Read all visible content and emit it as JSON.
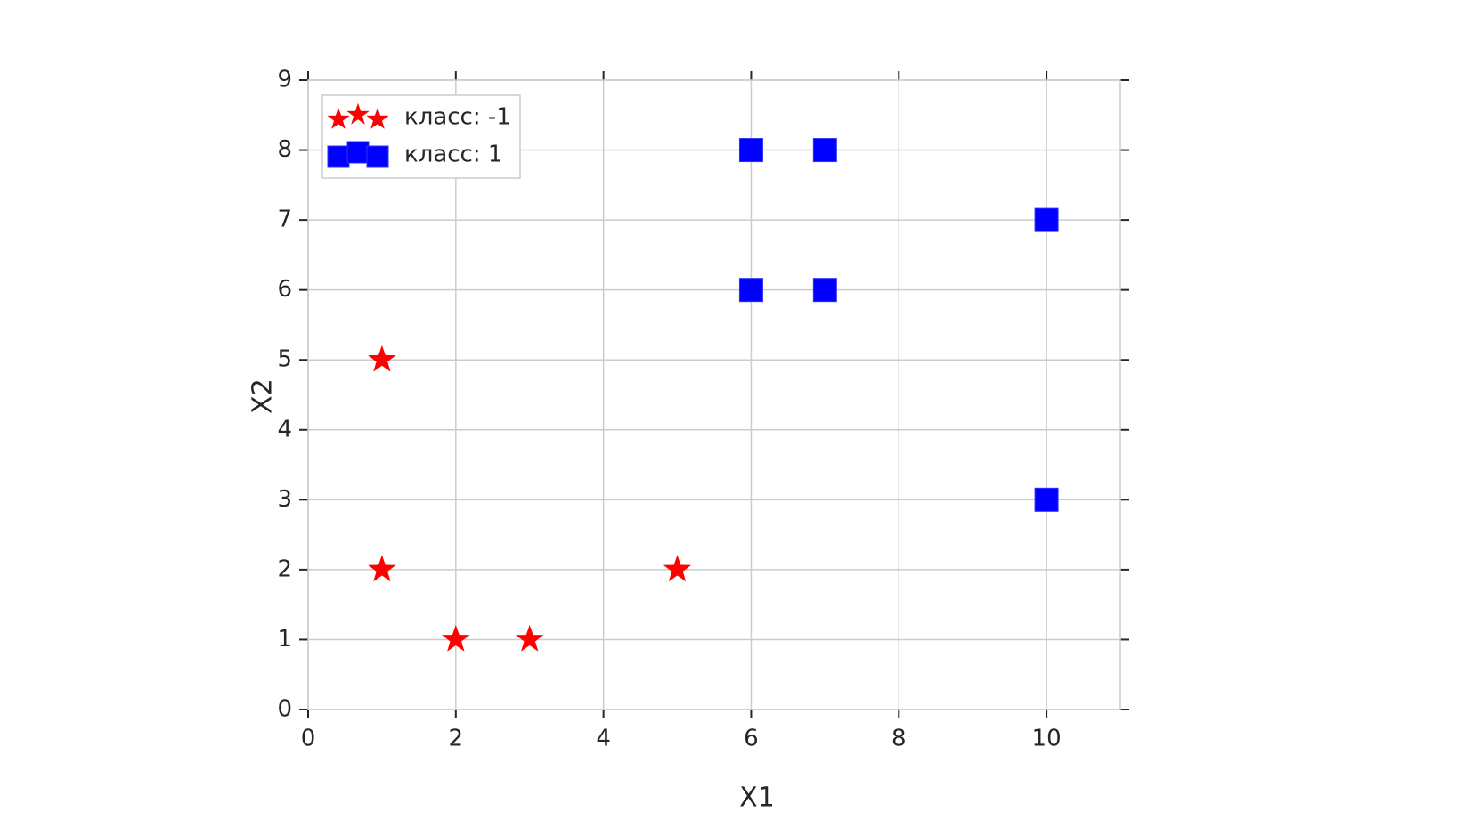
{
  "chart_data": {
    "type": "scatter",
    "xlabel": "X1",
    "ylabel": "X2",
    "xlim": [
      0,
      11
    ],
    "ylim": [
      0,
      9
    ],
    "xticks": [
      0,
      2,
      4,
      6,
      8,
      10
    ],
    "yticks": [
      0,
      1,
      2,
      3,
      4,
      5,
      6,
      7,
      8,
      9
    ],
    "grid": true,
    "legend": "upper left",
    "series": [
      {
        "name": "класс: -1",
        "color": "#ff0000",
        "marker": "star",
        "x": [
          1,
          1,
          2,
          3,
          5
        ],
        "values": [
          5,
          2,
          1,
          1,
          2
        ]
      },
      {
        "name": "класс: 1",
        "color": "#0000ff",
        "marker": "square",
        "x": [
          6,
          7,
          10,
          6,
          7,
          10
        ],
        "values": [
          8,
          8,
          7,
          6,
          6,
          3
        ]
      }
    ]
  }
}
